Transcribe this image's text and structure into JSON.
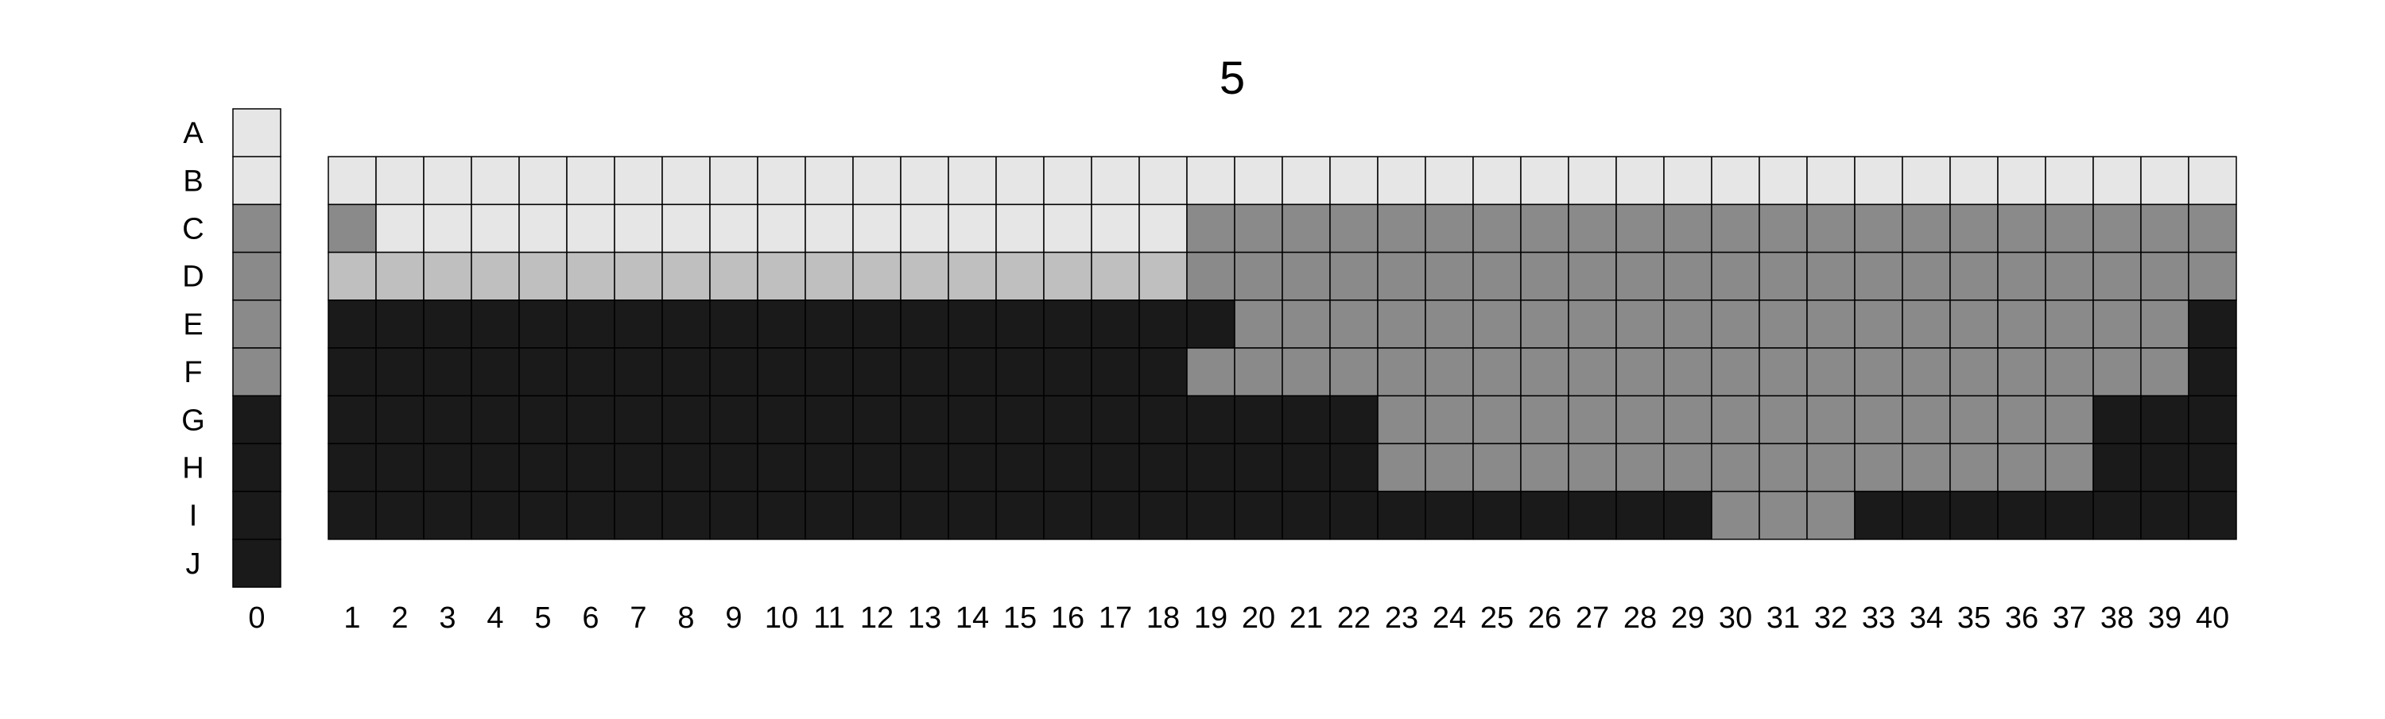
{
  "chart_data": {
    "type": "heatmap",
    "title": "5",
    "row_labels": [
      "A",
      "B",
      "C",
      "D",
      "E",
      "F",
      "G",
      "H",
      "I",
      "J"
    ],
    "col_labels": [
      "0",
      "1",
      "2",
      "3",
      "4",
      "5",
      "6",
      "7",
      "8",
      "9",
      "10",
      "11",
      "12",
      "13",
      "14",
      "15",
      "16",
      "17",
      "18",
      "19",
      "20",
      "21",
      "22",
      "23",
      "24",
      "25",
      "26",
      "27",
      "28",
      "29",
      "30",
      "31",
      "32",
      "33",
      "34",
      "35",
      "36",
      "37",
      "38",
      "39",
      "40"
    ],
    "palette": {
      "W": "#e6e6e6",
      "L": "#bfbfbf",
      "M": "#8a8a8a",
      "K": "#1a1a1a"
    },
    "reference_column": {
      "label": "0",
      "cells": [
        "W",
        "W",
        "M",
        "M",
        "M",
        "M",
        "K",
        "K",
        "K",
        "K"
      ]
    },
    "grid": {
      "rows": [
        "B",
        "C",
        "D",
        "E",
        "F",
        "G",
        "H",
        "I"
      ],
      "cols_from": 1,
      "cols_to": 40,
      "cells": [
        "WWWWWWWWWWWWWWWWWWWWWWWWWWWWWWWWWWWWWWWW",
        "MWWWWWWWWWWWWWWWWWMMMMMMMMMMMMMMMMMMMMMM",
        "LLLLLLLLLLLLLLLLLLMMMMMMMMMMMMMMMMMMMMMM",
        "KKKKKKKKKKKKKKKKKKKMMMMMMMMMMMMMMMMMMMMK",
        "KKKKKKKKKKKKKKKKKKMMMMMMMMMMMMMMMMMMMMMK",
        "KKKKKKKKKKKKKKKKKKKKKKMMMMMMMMMMMMMMMKKK",
        "KKKKKKKKKKKKKKKKKKKKKKMMMMMMMMMMMMMMMKKK",
        "KKKKKKKKKKKKKKKKKKKKKKKKKKKKKMMMKKKKKKKK"
      ]
    }
  }
}
